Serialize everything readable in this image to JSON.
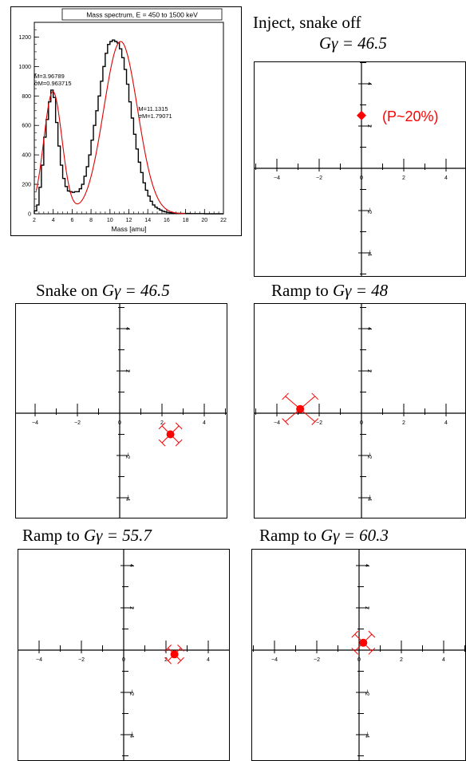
{
  "chart_data": [
    {
      "type": "line",
      "title": "Mass spectrum, E = 450 to 1500 keV",
      "xlabel": "Mass [amu]",
      "ylabel": "",
      "xlim": [
        2,
        22
      ],
      "ylim": [
        0,
        1300
      ],
      "xticks": [
        "2",
        "4",
        "6",
        "8",
        "10",
        "12",
        "14",
        "16",
        "18",
        "20",
        "22"
      ],
      "yticks": [
        "0",
        "200",
        "400",
        "600",
        "800",
        "1000",
        "1200"
      ],
      "series": [
        {
          "style": "histogram",
          "color": "#000000",
          "x": [
            2.0,
            2.25,
            2.5,
            2.75,
            3.0,
            3.25,
            3.5,
            3.75,
            4.0,
            4.25,
            4.5,
            4.75,
            5.0,
            5.25,
            5.5,
            5.75,
            6.0,
            6.25,
            6.5,
            6.75,
            7.0,
            7.25,
            7.5,
            7.75,
            8.0,
            8.25,
            8.5,
            8.75,
            9.0,
            9.25,
            9.5,
            9.75,
            10.0,
            10.25,
            10.5,
            10.75,
            11.0,
            11.25,
            11.5,
            11.75,
            12.0,
            12.25,
            12.5,
            12.75,
            13.0,
            13.25,
            13.5,
            13.75,
            14.0,
            14.25,
            14.5,
            14.75,
            15.0,
            15.25,
            15.5,
            15.75,
            16.0,
            16.25,
            16.5,
            16.75,
            17.0,
            17.5,
            18.0,
            18.5,
            19.0,
            20.0,
            21.0
          ],
          "y": [
            20,
            60,
            180,
            330,
            520,
            640,
            760,
            840,
            790,
            620,
            460,
            330,
            240,
            185,
            155,
            150,
            145,
            150,
            150,
            170,
            200,
            255,
            320,
            400,
            500,
            600,
            700,
            800,
            900,
            1000,
            1090,
            1150,
            1170,
            1180,
            1170,
            1160,
            1120,
            1060,
            980,
            880,
            760,
            650,
            540,
            440,
            350,
            280,
            210,
            160,
            120,
            85,
            60,
            45,
            35,
            25,
            18,
            13,
            10,
            7,
            5,
            4,
            3,
            2,
            2,
            1,
            1,
            0,
            0
          ]
        },
        {
          "name": "",
          "style": "fit",
          "color": "#e00000",
          "peaks": [
            {
              "mean": 3.96789,
              "sigma": 0.963715,
              "amp": 830
            },
            {
              "mean": 11.1315,
              "sigma": 1.79071,
              "amp": 1170
            }
          ]
        }
      ],
      "annotations": [
        {
          "line1": "M=3.96789",
          "line2": "σM=0.963715"
        },
        {
          "line1": "M=11.1315",
          "line2": "σM=1.79071"
        }
      ]
    },
    {
      "type": "scatter",
      "title_pre": "Inject, snake off",
      "title_math": "Gγ = 46.5",
      "xlim": [
        -5,
        5
      ],
      "ylim": [
        -5,
        5
      ],
      "ticks": [
        "−4",
        "−2",
        "0",
        "2",
        "4"
      ],
      "point": {
        "x": 0,
        "y": 2.5,
        "marker": "diamond",
        "color": "#ff0000"
      },
      "annotation": "(P~20%)"
    },
    {
      "type": "scatter",
      "title_pre": "Snake on",
      "title_math": "Gγ = 46.5",
      "xlim": [
        -5,
        5
      ],
      "ylim": [
        -5,
        5
      ],
      "ticks": [
        "−4",
        "−2",
        "0",
        "2",
        "4"
      ],
      "point": {
        "x": 2.4,
        "y": -1.0,
        "ex": 0.4,
        "ey": 0.4,
        "marker": "circle",
        "color": "#ff0000"
      }
    },
    {
      "type": "scatter",
      "title_pre": "Ramp to",
      "title_math": "Gγ = 48",
      "xlim": [
        -5,
        5
      ],
      "ylim": [
        -5,
        5
      ],
      "ticks": [
        "−4",
        "−2",
        "0",
        "2",
        "4"
      ],
      "point": {
        "x": -2.9,
        "y": 0.2,
        "ex": 0.7,
        "ey": 0.6,
        "marker": "circle",
        "color": "#ff0000"
      }
    },
    {
      "type": "scatter",
      "title_pre": "Ramp to",
      "title_math": "Gγ = 55.7",
      "xlim": [
        -5,
        5
      ],
      "ylim": [
        -5,
        5
      ],
      "ticks": [
        "−4",
        "−2",
        "0",
        "2",
        "4"
      ],
      "point": {
        "x": 2.4,
        "y": -0.2,
        "ex": 0.3,
        "ey": 0.3,
        "marker": "circle",
        "color": "#ff0000"
      }
    },
    {
      "type": "scatter",
      "title_pre": "Ramp to",
      "title_math": "Gγ = 60.3",
      "xlim": [
        -5,
        5
      ],
      "ylim": [
        -5,
        5
      ],
      "ticks": [
        "−4",
        "−2",
        "0",
        "2",
        "4"
      ],
      "point": {
        "x": 0.2,
        "y": 0.35,
        "ex": 0.4,
        "ey": 0.4,
        "marker": "circle",
        "color": "#ff0000"
      }
    }
  ]
}
